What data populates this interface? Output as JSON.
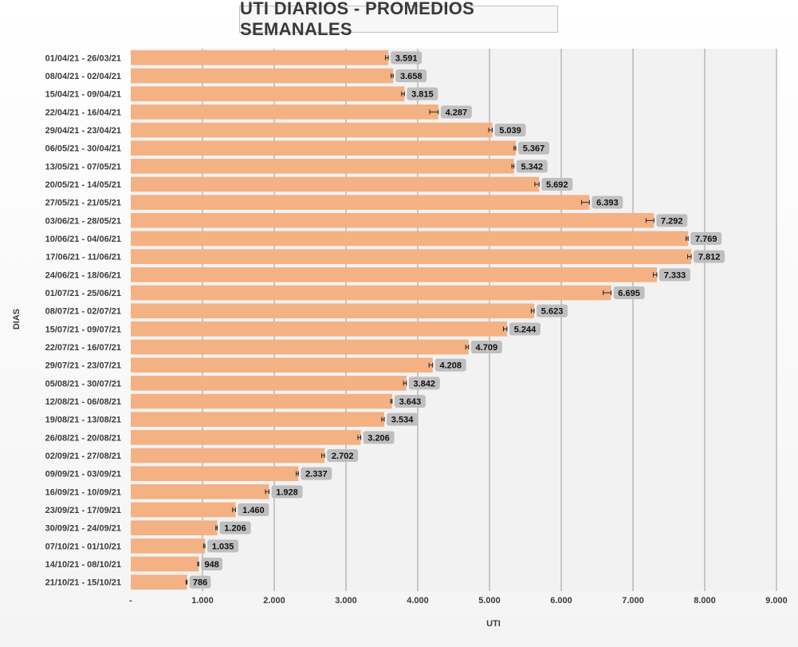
{
  "chart_data": {
    "type": "bar",
    "orientation": "horizontal",
    "title": "UTI DIARIOS - PROMEDIOS SEMANALES",
    "xlabel": "UTI",
    "ylabel": "DIAS",
    "xlim": [
      0,
      9000
    ],
    "xticks": [
      0,
      1000,
      2000,
      3000,
      4000,
      5000,
      6000,
      7000,
      8000,
      9000
    ],
    "xtick_labels": [
      "-",
      "1.000",
      "2.000",
      "3.000",
      "4.000",
      "5.000",
      "6.000",
      "7.000",
      "8.000",
      "9.000"
    ],
    "grid": true,
    "error_bars": true,
    "categories": [
      "01/04/21 - 26/03/21",
      "08/04/21 - 02/04/21",
      "15/04/21 - 09/04/21",
      "22/04/21 - 16/04/21",
      "29/04/21 - 23/04/21",
      "06/05/21 - 30/04/21",
      "13/05/21 - 07/05/21",
      "20/05/21 - 14/05/21",
      "27/05/21 - 21/05/21",
      "03/06/21 - 28/05/21",
      "10/06/21 - 04/06/21",
      "17/06/21 - 11/06/21",
      "24/06/21 - 18/06/21",
      "01/07/21 - 25/06/21",
      "08/07/21 - 02/07/21",
      "15/07/21 - 09/07/21",
      "22/07/21 - 16/07/21",
      "29/07/21 - 23/07/21",
      "05/08/21 - 30/07/21",
      "12/08/21 - 06/08/21",
      "19/08/21 - 13/08/21",
      "26/08/21 - 20/08/21",
      "02/09/21 - 27/08/21",
      "09/09/21 - 03/09/21",
      "16/09/21 - 10/09/21",
      "23/09/21 - 17/09/21",
      "30/09/21 - 24/09/21",
      "07/10/21 - 01/10/21",
      "14/10/21 - 08/10/21",
      "21/10/21 - 15/10/21"
    ],
    "values": [
      3591,
      3658,
      3815,
      4287,
      5039,
      5367,
      5342,
      5692,
      6393,
      7292,
      7769,
      7812,
      7333,
      6695,
      5623,
      5244,
      4709,
      4208,
      3842,
      3643,
      3534,
      3206,
      2702,
      2337,
      1928,
      1460,
      1206,
      1035,
      948,
      786
    ],
    "labels": [
      "3.591",
      "3.658",
      "3.815",
      "4.287",
      "5.039",
      "5.367",
      "5.342",
      "5.692",
      "6.393",
      "7.292",
      "7.769",
      "7.812",
      "7.333",
      "6.695",
      "5.623",
      "5.244",
      "4.709",
      "4.208",
      "3.842",
      "3.643",
      "3.534",
      "3.206",
      "2.702",
      "2.337",
      "1.928",
      "1.460",
      "1.206",
      "1.035",
      "948",
      "786"
    ],
    "error_minus": [
      40,
      30,
      40,
      120,
      50,
      25,
      30,
      60,
      110,
      110,
      30,
      50,
      50,
      110,
      40,
      50,
      40,
      50,
      40,
      20,
      35,
      40,
      40,
      30,
      50,
      40,
      20,
      20,
      15,
      15
    ],
    "colors": {
      "bar": "#f4b183",
      "label_bg": "#bfbfbf",
      "grid": "#9a9a9a",
      "plot_bg": "#f2f2f2"
    }
  }
}
